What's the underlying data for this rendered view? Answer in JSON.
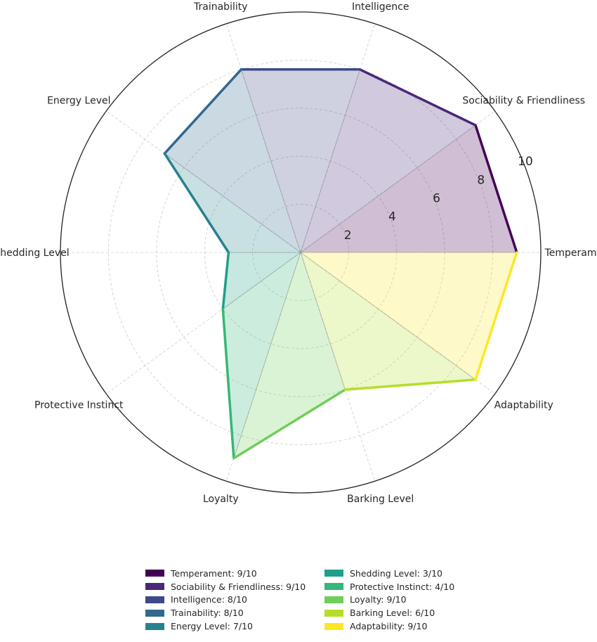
{
  "chart_data": {
    "type": "radar",
    "title": "",
    "rlim": [
      0,
      10
    ],
    "r_ticks": [
      2,
      4,
      6,
      8,
      10
    ],
    "categories": [
      "Temperament",
      "Sociability & Friendliness",
      "Intelligence",
      "Trainability",
      "Energy Level",
      "Shedding Level",
      "Protective Instinct",
      "Loyalty",
      "Barking Level",
      "Adaptability"
    ],
    "values": [
      9,
      9,
      8,
      8,
      7,
      3,
      4,
      9,
      6,
      9
    ],
    "colors": [
      "#440154",
      "#482878",
      "#3e4989",
      "#31688e",
      "#26828e",
      "#1f9e89",
      "#35b779",
      "#6ece58",
      "#b5de2b",
      "#fde725"
    ],
    "legend": [
      "Temperament: 9/10",
      "Sociability & Friendliness: 9/10",
      "Intelligence: 8/10",
      "Trainability: 8/10",
      "Energy Level: 7/10",
      "Shedding Level: 3/10",
      "Protective Instinct: 4/10",
      "Loyalty: 9/10",
      "Barking Level: 6/10",
      "Adaptability: 9/10"
    ],
    "legend_position": "bottom-center",
    "grid": true
  }
}
